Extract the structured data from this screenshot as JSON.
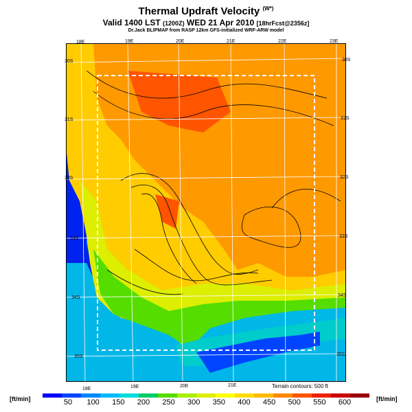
{
  "header": {
    "title": "Thermal Updraft Velocity",
    "title_unit": "(W*)",
    "subtitle_main": "Valid 1400 LST",
    "subtitle_time_paren": "(1200Z)",
    "subtitle_date": "WED 21 Apr 2010",
    "subtitle_fcst": "[18hrFcst@2356z]",
    "credit": "Dr.Jack BLIPMAP from RASP 12km GFS-initialized WRF-ARW model"
  },
  "map": {
    "lon_labels_top": [
      "18E",
      "19E",
      "20E",
      "21E",
      "22E",
      "23E"
    ],
    "lon_labels_bottom": [
      "18E",
      "19E",
      "20E",
      "21E"
    ],
    "lat_labels_left": [
      "30S",
      "31S",
      "32S",
      "33S",
      "34S",
      "35S"
    ],
    "lat_labels_right": [
      "30S",
      "31S",
      "32S",
      "33S",
      "34S",
      "35S"
    ],
    "terrain_note": "Terrain contours: 500 ft"
  },
  "legend": {
    "unit_left": "[ft/min]",
    "unit_right": "[ft/min]",
    "ticks": [
      "50",
      "100",
      "150",
      "200",
      "250",
      "300",
      "350",
      "400",
      "450",
      "500",
      "550",
      "600"
    ],
    "colors": [
      "#0000ff",
      "#0044ff",
      "#0088ff",
      "#00bbff",
      "#00dddd",
      "#00cc66",
      "#55dd00",
      "#aaee00",
      "#ddee00",
      "#ffff00",
      "#ffdd00",
      "#ffbb00",
      "#ff8800",
      "#ff5500",
      "#ee2200",
      "#cc0000",
      "#990000"
    ]
  }
}
